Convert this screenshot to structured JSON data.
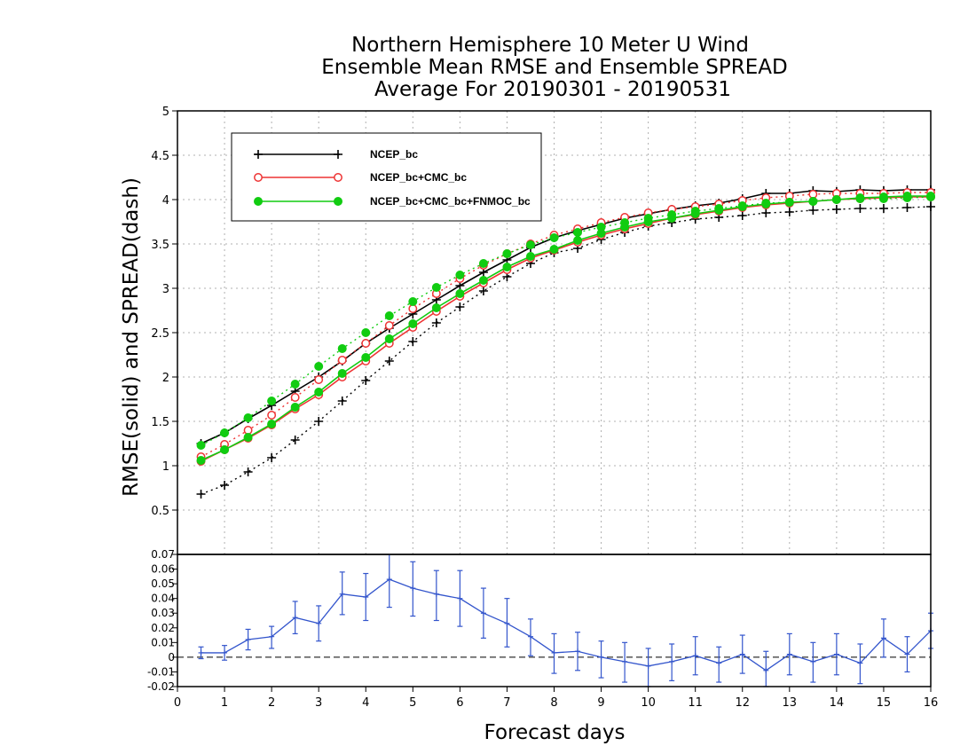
{
  "chart_data": [
    {
      "type": "line",
      "title": [
        "Northern Hemisphere 10 Meter U Wind",
        "Ensemble Mean RMSE and Ensemble SPREAD",
        "Average For 20190301 - 20190531"
      ],
      "ylabel": "RMSE(solid) and SPREAD(dash)",
      "xlim": [
        0,
        16
      ],
      "ylim": [
        0,
        5
      ],
      "yticks": [
        "0.5",
        "1",
        "1.5",
        "2",
        "2.5",
        "3",
        "3.5",
        "4",
        "4.5",
        "5"
      ],
      "grid": true,
      "legend_position": "top-left",
      "x": [
        0.5,
        1,
        1.5,
        2,
        2.5,
        3,
        3.5,
        4,
        4.5,
        5,
        5.5,
        6,
        6.5,
        7,
        7.5,
        8,
        8.5,
        9,
        9.5,
        10,
        10.5,
        11,
        11.5,
        12,
        12.5,
        13,
        13.5,
        14,
        14.5,
        15,
        15.5,
        16
      ],
      "series": [
        {
          "name": "NCEP_bc",
          "color": "#000000",
          "marker": "plus",
          "rmse": [
            1.25,
            1.37,
            1.53,
            1.68,
            1.84,
            2.0,
            2.18,
            2.38,
            2.55,
            2.71,
            2.87,
            3.03,
            3.18,
            3.32,
            3.46,
            3.57,
            3.65,
            3.72,
            3.79,
            3.84,
            3.89,
            3.93,
            3.96,
            4.01,
            4.07,
            4.07,
            4.1,
            4.09,
            4.11,
            4.1,
            4.11,
            4.11
          ],
          "spread": [
            0.68,
            0.78,
            0.93,
            1.09,
            1.29,
            1.5,
            1.73,
            1.96,
            2.18,
            2.4,
            2.61,
            2.79,
            2.97,
            3.13,
            3.28,
            3.4,
            3.45,
            3.55,
            3.63,
            3.7,
            3.74,
            3.78,
            3.8,
            3.82,
            3.85,
            3.86,
            3.88,
            3.89,
            3.9,
            3.9,
            3.91,
            3.92
          ]
        },
        {
          "name": "NCEP_bc+CMC_bc",
          "color": "#ee3333",
          "marker": "open-circle",
          "rmse": [
            1.05,
            1.18,
            1.31,
            1.46,
            1.64,
            1.8,
            2.0,
            2.18,
            2.38,
            2.56,
            2.74,
            2.91,
            3.06,
            3.21,
            3.34,
            3.43,
            3.52,
            3.6,
            3.67,
            3.73,
            3.79,
            3.83,
            3.87,
            3.91,
            3.94,
            3.96,
            3.98,
            4.0,
            4.01,
            4.02,
            4.03,
            4.03
          ],
          "spread": [
            1.1,
            1.24,
            1.4,
            1.57,
            1.77,
            1.97,
            2.19,
            2.38,
            2.58,
            2.77,
            2.94,
            3.11,
            3.26,
            3.39,
            3.5,
            3.6,
            3.67,
            3.74,
            3.8,
            3.85,
            3.89,
            3.92,
            3.95,
            3.99,
            4.02,
            4.04,
            4.06,
            4.07,
            4.07,
            4.07,
            4.08,
            4.08
          ]
        },
        {
          "name": "NCEP_bc+CMC_bc+FNMOC_bc",
          "color": "#11cc11",
          "marker": "filled-circle",
          "rmse": [
            1.06,
            1.18,
            1.32,
            1.47,
            1.66,
            1.83,
            2.04,
            2.22,
            2.43,
            2.6,
            2.78,
            2.94,
            3.09,
            3.24,
            3.36,
            3.44,
            3.54,
            3.62,
            3.69,
            3.75,
            3.79,
            3.84,
            3.88,
            3.92,
            3.95,
            3.97,
            3.98,
            4.0,
            4.02,
            4.03,
            4.04,
            4.04
          ],
          "spread": [
            1.23,
            1.37,
            1.54,
            1.73,
            1.92,
            2.12,
            2.32,
            2.5,
            2.69,
            2.85,
            3.01,
            3.15,
            3.28,
            3.39,
            3.49,
            3.57,
            3.63,
            3.69,
            3.74,
            3.79,
            3.83,
            3.87,
            3.9,
            3.93,
            3.96,
            3.97,
            3.98,
            4.0,
            4.01,
            4.01,
            4.02,
            4.03
          ]
        }
      ]
    },
    {
      "type": "line",
      "xlabel": "Forecast days",
      "xlim": [
        0,
        16
      ],
      "xticks": [
        "0",
        "1",
        "2",
        "3",
        "4",
        "5",
        "6",
        "7",
        "8",
        "9",
        "10",
        "11",
        "12",
        "13",
        "14",
        "15",
        "16"
      ],
      "ylim": [
        -0.02,
        0.07
      ],
      "yticks": [
        "-0.02",
        "-0.01",
        "0",
        "0.01",
        "0.02",
        "0.03",
        "0.04",
        "0.05",
        "0.06",
        "0.07"
      ],
      "reference_line": 0,
      "series": [
        {
          "color": "#3355cc",
          "error_bars": true,
          "x": [
            0.5,
            1,
            1.5,
            2,
            2.5,
            3,
            3.5,
            4,
            4.5,
            5,
            5.5,
            6,
            6.5,
            7,
            7.5,
            8,
            8.5,
            9,
            9.5,
            10,
            10.5,
            11,
            11.5,
            12,
            12.5,
            13,
            13.5,
            14,
            14.5,
            15,
            15.5,
            16
          ],
          "y": [
            0.003,
            0.003,
            0.012,
            0.014,
            0.027,
            0.023,
            0.043,
            0.041,
            0.053,
            0.047,
            0.043,
            0.04,
            0.03,
            0.023,
            0.014,
            0.003,
            0.004,
            0.0,
            -0.003,
            -0.006,
            -0.003,
            0.001,
            -0.004,
            0.002,
            -0.009,
            0.002,
            -0.003,
            0.002,
            -0.004,
            0.013,
            0.002,
            0.018
          ],
          "low": [
            -0.001,
            -0.002,
            0.005,
            0.006,
            0.016,
            0.011,
            0.029,
            0.025,
            0.034,
            0.028,
            0.025,
            0.021,
            0.013,
            0.007,
            0.001,
            -0.011,
            -0.009,
            -0.014,
            -0.017,
            -0.02,
            -0.016,
            -0.012,
            -0.017,
            -0.011,
            -0.021,
            -0.012,
            -0.017,
            -0.012,
            -0.018,
            0.0,
            -0.01,
            0.006
          ],
          "high": [
            0.007,
            0.008,
            0.019,
            0.021,
            0.038,
            0.035,
            0.058,
            0.057,
            0.072,
            0.065,
            0.059,
            0.059,
            0.047,
            0.04,
            0.026,
            0.016,
            0.017,
            0.011,
            0.01,
            0.006,
            0.009,
            0.014,
            0.007,
            0.015,
            0.004,
            0.016,
            0.01,
            0.016,
            0.009,
            0.026,
            0.014,
            0.03
          ]
        }
      ]
    }
  ]
}
